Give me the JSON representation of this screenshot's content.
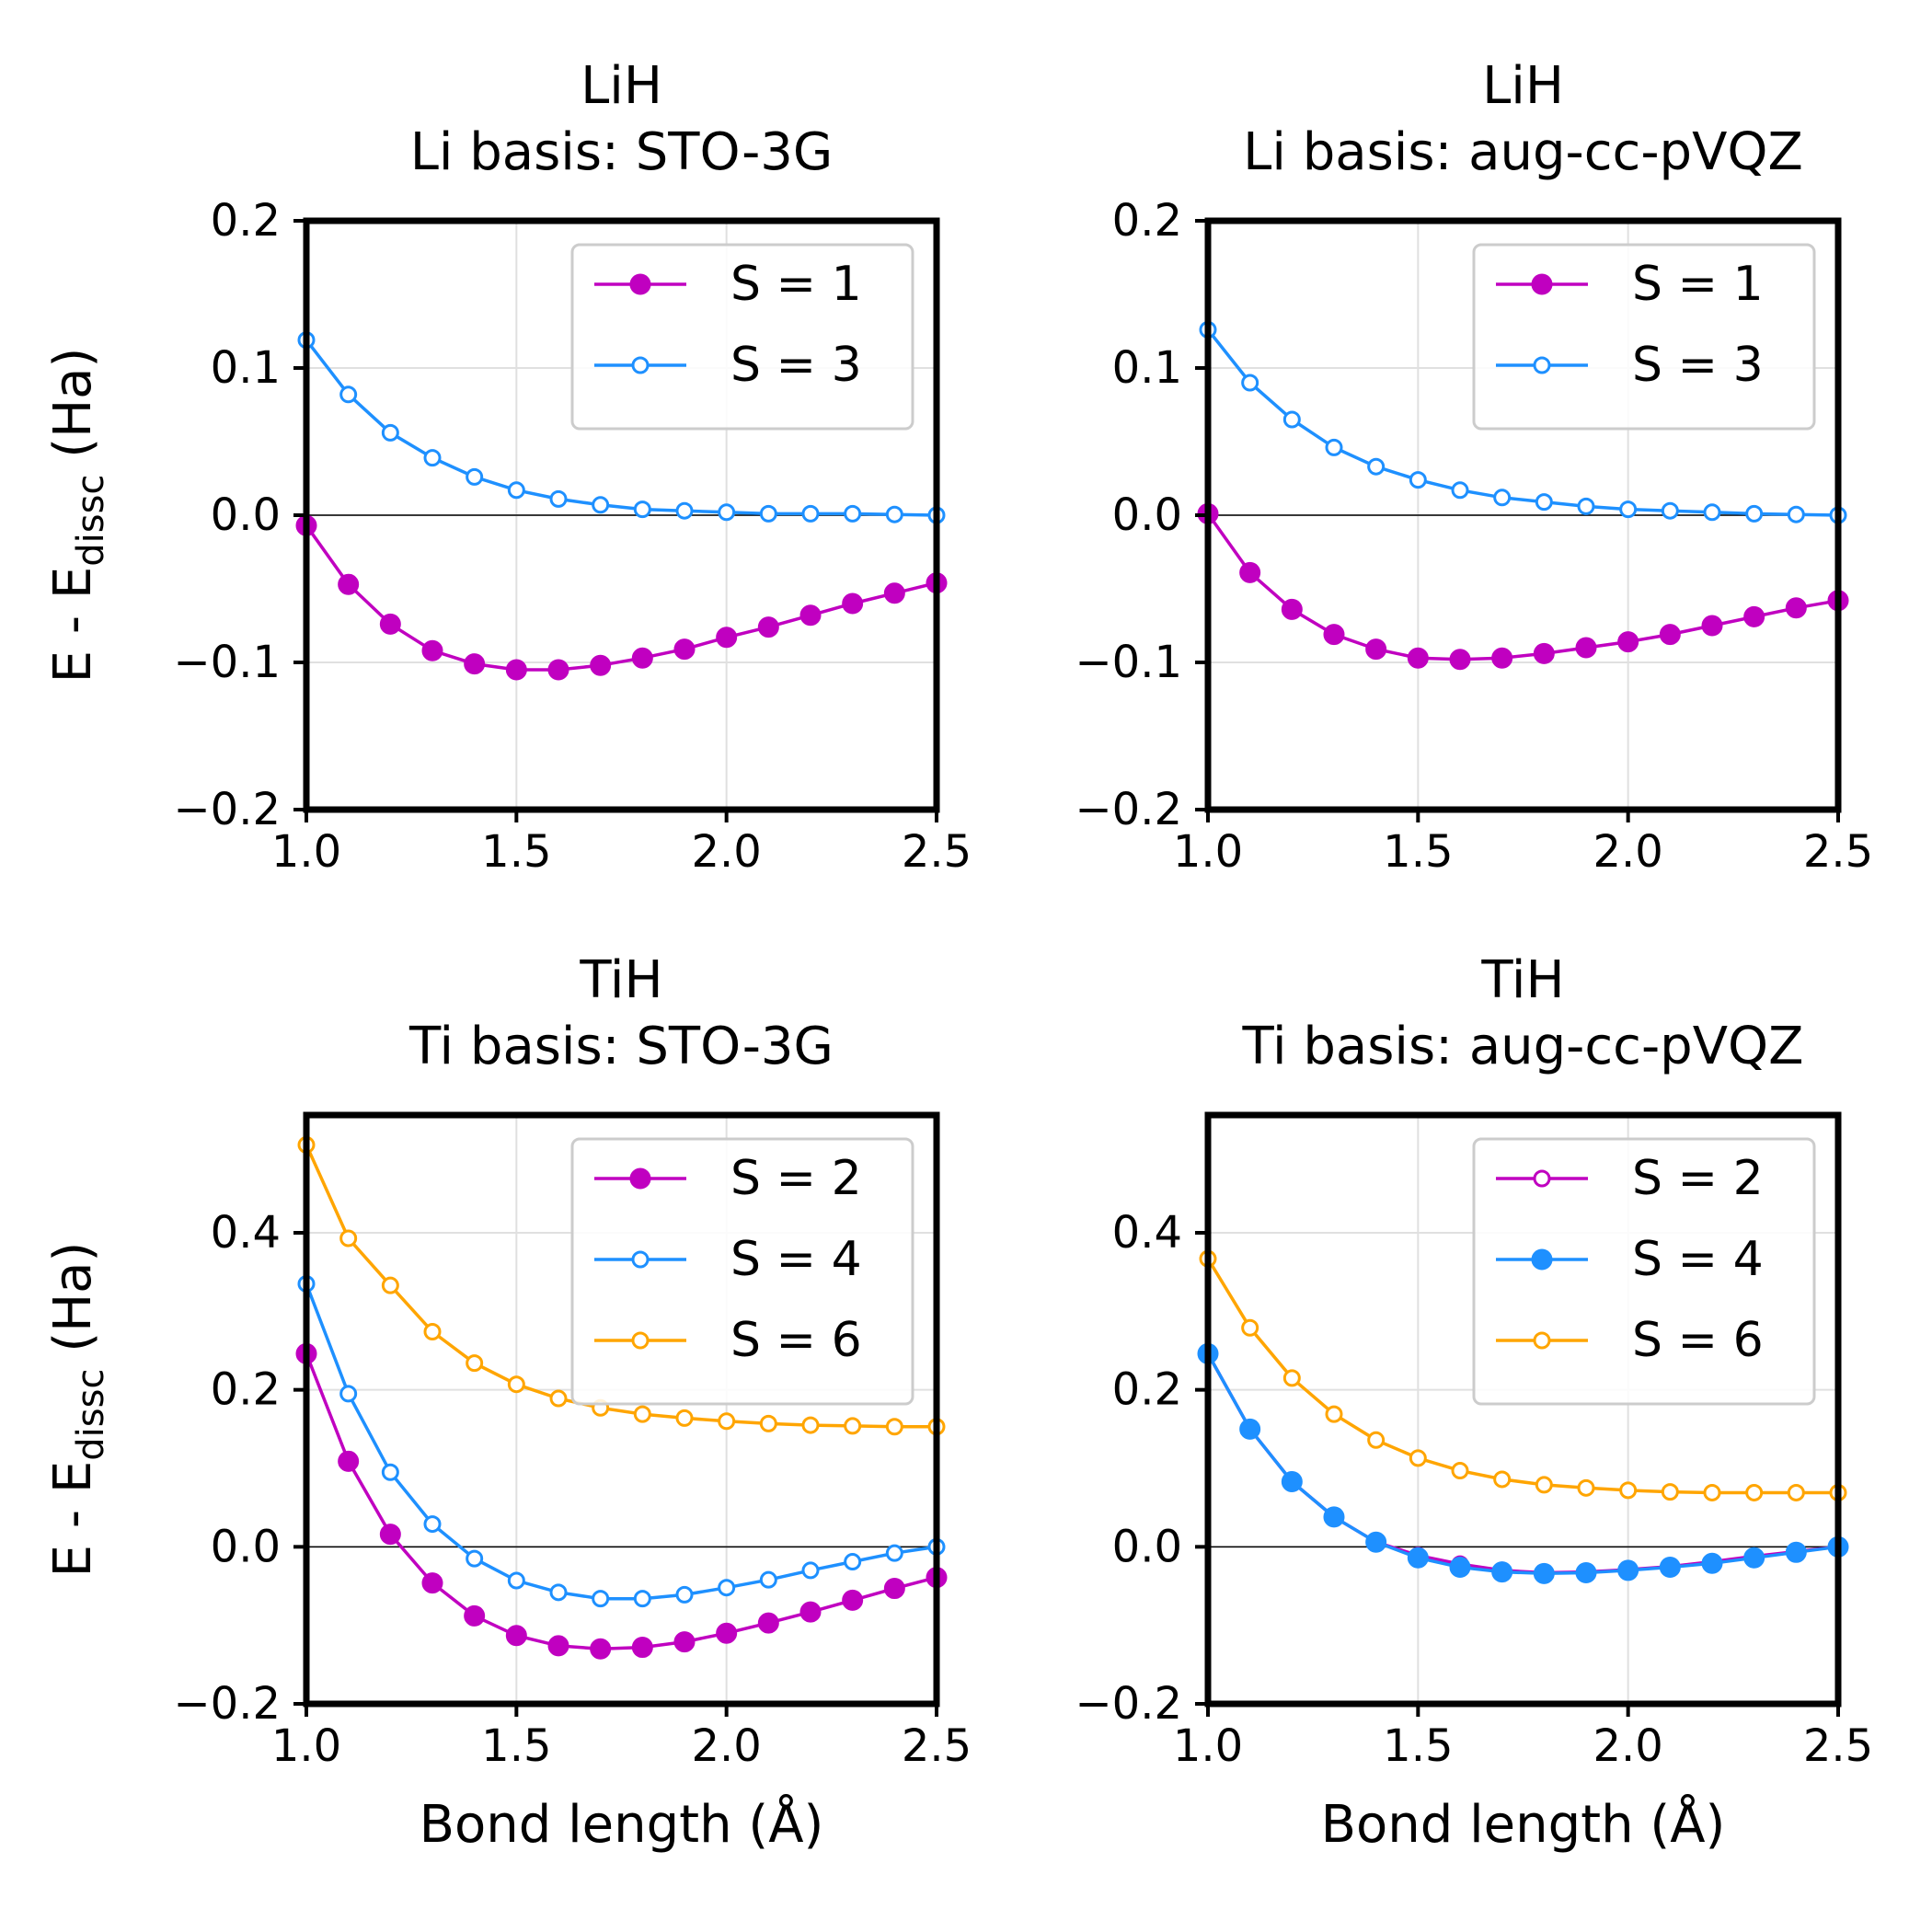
{
  "chart_data": [
    {
      "type": "line",
      "title_line1": "LiH",
      "title_line2": "Li basis: STO-3G",
      "xlabel": "",
      "ylabel_main": "E - E",
      "ylabel_sub": "dissc",
      "ylabel_unit": " (Ha)",
      "xlim": [
        1.0,
        2.5
      ],
      "ylim": [
        -0.2,
        0.2
      ],
      "xticks": [
        1.0,
        1.5,
        2.0,
        2.5
      ],
      "xtick_labels": [
        "1.0",
        "1.5",
        "2.0",
        "2.5"
      ],
      "yticks": [
        -0.2,
        -0.1,
        0.0,
        0.1,
        0.2
      ],
      "ytick_labels": [
        "−0.2",
        "−0.1",
        "0.0",
        "0.1",
        "0.2"
      ],
      "grid": true,
      "legend_position": "top-right",
      "x": [
        1.0,
        1.1,
        1.2,
        1.3,
        1.4,
        1.5,
        1.6,
        1.7,
        1.8,
        1.9,
        2.0,
        2.1,
        2.2,
        2.3,
        2.4,
        2.5
      ],
      "series": [
        {
          "name": "S = 1",
          "color": "#c000c0",
          "marker": "filled",
          "values": [
            -0.007,
            -0.047,
            -0.074,
            -0.092,
            -0.101,
            -0.105,
            -0.105,
            -0.102,
            -0.097,
            -0.091,
            -0.083,
            -0.076,
            -0.068,
            -0.06,
            -0.053,
            -0.046
          ]
        },
        {
          "name": "S = 3",
          "color": "#1e90ff",
          "marker": "hollow",
          "values": [
            0.119,
            0.082,
            0.056,
            0.039,
            0.026,
            0.017,
            0.011,
            0.007,
            0.004,
            0.003,
            0.002,
            0.001,
            0.001,
            0.001,
            0.0005,
            0.0
          ]
        }
      ]
    },
    {
      "type": "line",
      "title_line1": "LiH",
      "title_line2": "Li basis: aug-cc-pVQZ",
      "xlabel": "",
      "ylabel_main": "",
      "ylabel_sub": "",
      "ylabel_unit": "",
      "xlim": [
        1.0,
        2.5
      ],
      "ylim": [
        -0.2,
        0.2
      ],
      "xticks": [
        1.0,
        1.5,
        2.0,
        2.5
      ],
      "xtick_labels": [
        "1.0",
        "1.5",
        "2.0",
        "2.5"
      ],
      "yticks": [
        -0.2,
        -0.1,
        0.0,
        0.1,
        0.2
      ],
      "ytick_labels": [
        "−0.2",
        "−0.1",
        "0.0",
        "0.1",
        "0.2"
      ],
      "grid": true,
      "legend_position": "top-right",
      "x": [
        1.0,
        1.1,
        1.2,
        1.3,
        1.4,
        1.5,
        1.6,
        1.7,
        1.8,
        1.9,
        2.0,
        2.1,
        2.2,
        2.3,
        2.4,
        2.5
      ],
      "series": [
        {
          "name": "S = 1",
          "color": "#c000c0",
          "marker": "filled",
          "values": [
            0.001,
            -0.039,
            -0.064,
            -0.081,
            -0.091,
            -0.097,
            -0.098,
            -0.097,
            -0.094,
            -0.09,
            -0.086,
            -0.081,
            -0.075,
            -0.069,
            -0.063,
            -0.058
          ]
        },
        {
          "name": "S = 3",
          "color": "#1e90ff",
          "marker": "hollow",
          "values": [
            0.126,
            0.09,
            0.065,
            0.046,
            0.033,
            0.024,
            0.017,
            0.012,
            0.009,
            0.006,
            0.004,
            0.003,
            0.002,
            0.001,
            0.0005,
            0.0
          ]
        }
      ]
    },
    {
      "type": "line",
      "title_line1": "TiH",
      "title_line2": "Ti basis: STO-3G",
      "xlabel": "Bond length (Å)",
      "ylabel_main": "E - E",
      "ylabel_sub": "dissc",
      "ylabel_unit": " (Ha)",
      "xlim": [
        1.0,
        2.5
      ],
      "ylim": [
        -0.2,
        0.55
      ],
      "xticks": [
        1.0,
        1.5,
        2.0,
        2.5
      ],
      "xtick_labels": [
        "1.0",
        "1.5",
        "2.0",
        "2.5"
      ],
      "yticks": [
        -0.2,
        0.0,
        0.2,
        0.4
      ],
      "ytick_labels": [
        "−0.2",
        "0.0",
        "0.2",
        "0.4"
      ],
      "grid": true,
      "legend_position": "top-right",
      "x": [
        1.0,
        1.1,
        1.2,
        1.3,
        1.4,
        1.5,
        1.6,
        1.7,
        1.8,
        1.9,
        2.0,
        2.1,
        2.2,
        2.3,
        2.4,
        2.5
      ],
      "series": [
        {
          "name": "S = 2",
          "color": "#c000c0",
          "marker": "filled",
          "values": [
            0.246,
            0.109,
            0.016,
            -0.046,
            -0.088,
            -0.113,
            -0.126,
            -0.13,
            -0.128,
            -0.121,
            -0.11,
            -0.097,
            -0.083,
            -0.068,
            -0.053,
            -0.039
          ]
        },
        {
          "name": "S = 4",
          "color": "#1e90ff",
          "marker": "hollow",
          "values": [
            0.335,
            0.195,
            0.095,
            0.029,
            -0.015,
            -0.043,
            -0.058,
            -0.066,
            -0.066,
            -0.061,
            -0.052,
            -0.042,
            -0.03,
            -0.019,
            -0.008,
            0.0
          ]
        },
        {
          "name": "S = 6",
          "color": "#ffa500",
          "marker": "hollow",
          "values": [
            0.512,
            0.393,
            0.333,
            0.274,
            0.234,
            0.207,
            0.189,
            0.177,
            0.169,
            0.164,
            0.16,
            0.157,
            0.155,
            0.154,
            0.153,
            0.153
          ]
        }
      ]
    },
    {
      "type": "line",
      "title_line1": "TiH",
      "title_line2": "Ti basis: aug-cc-pVQZ",
      "xlabel": "Bond length (Å)",
      "ylabel_main": "",
      "ylabel_sub": "",
      "ylabel_unit": "",
      "xlim": [
        1.0,
        2.5
      ],
      "ylim": [
        -0.2,
        0.55
      ],
      "xticks": [
        1.0,
        1.5,
        2.0,
        2.5
      ],
      "xtick_labels": [
        "1.0",
        "1.5",
        "2.0",
        "2.5"
      ],
      "yticks": [
        -0.2,
        0.0,
        0.2,
        0.4
      ],
      "ytick_labels": [
        "−0.2",
        "0.0",
        "0.2",
        "0.4"
      ],
      "grid": true,
      "legend_position": "top-right",
      "x": [
        1.0,
        1.1,
        1.2,
        1.3,
        1.4,
        1.5,
        1.6,
        1.7,
        1.8,
        1.9,
        2.0,
        2.1,
        2.2,
        2.3,
        2.4,
        2.5
      ],
      "series": [
        {
          "name": "S = 2",
          "color": "#c000c0",
          "marker": "hollow",
          "values": [
            0.246,
            0.15,
            0.083,
            0.038,
            0.006,
            -0.011,
            -0.022,
            -0.03,
            -0.033,
            -0.032,
            -0.029,
            -0.025,
            -0.019,
            -0.012,
            -0.006,
            0.0
          ]
        },
        {
          "name": "S = 4",
          "color": "#1e90ff",
          "marker": "filled",
          "values": [
            0.246,
            0.15,
            0.083,
            0.038,
            0.006,
            -0.014,
            -0.026,
            -0.032,
            -0.034,
            -0.033,
            -0.03,
            -0.026,
            -0.021,
            -0.014,
            -0.007,
            0.0
          ]
        },
        {
          "name": "S = 6",
          "color": "#ffa500",
          "marker": "hollow",
          "values": [
            0.367,
            0.279,
            0.215,
            0.169,
            0.136,
            0.113,
            0.097,
            0.086,
            0.079,
            0.075,
            0.072,
            0.07,
            0.069,
            0.069,
            0.069,
            0.069
          ]
        }
      ]
    }
  ]
}
